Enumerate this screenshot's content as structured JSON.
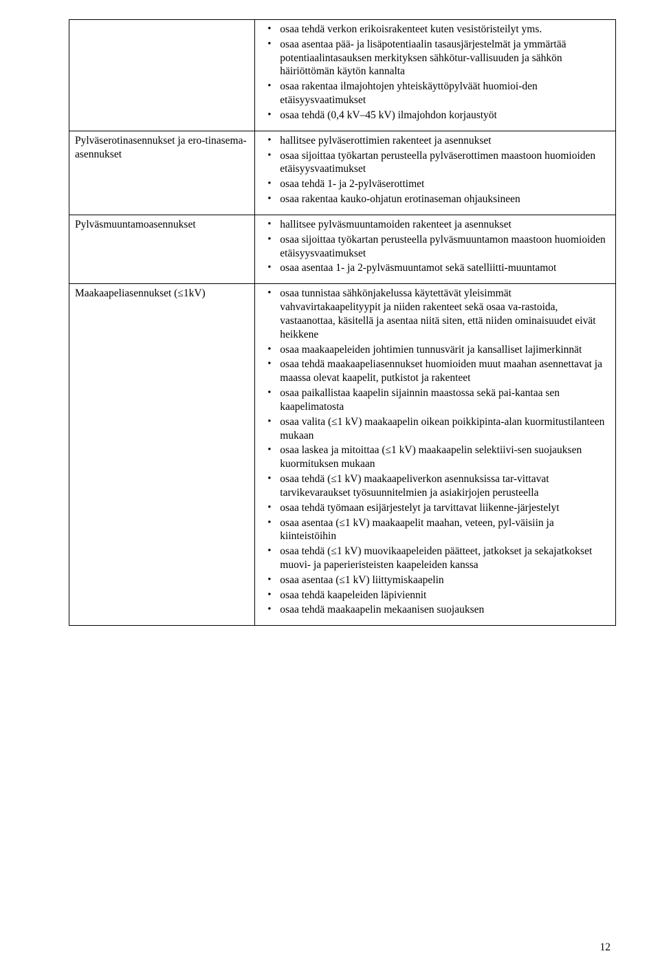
{
  "page_number": "12",
  "rows": [
    {
      "left": "",
      "right_block1": [
        "osaa tehdä verkon erikoisrakenteet kuten vesistöristeilyt yms.",
        "osaa asentaa pää- ja lisäpotentiaalin tasausjärjestelmät ja ymmärtää potentiaalintasauksen merkityksen sähkötur-vallisuuden ja sähkön häiriöttömän käytön kannalta",
        "osaa rakentaa ilmajohtojen yhteiskäyttöpylväät huomioi-den etäisyysvaatimukset",
        "osaa tehdä (0,4 kV–45 kV) ilmajohdon korjaustyöt"
      ],
      "right_block2": []
    },
    {
      "left": "Pylväserotinasennukset ja ero-tinasema-asennukset",
      "right_block1": [
        "hallitsee pylväserottimien rakenteet ja asennukset",
        "osaa sijoittaa työkartan perusteella pylväserottimen maastoon huomioiden etäisyysvaatimukset",
        "osaa tehdä 1- ja 2-pylväserottimet",
        "osaa rakentaa kauko-ohjatun erotinaseman ohjauksineen"
      ],
      "right_block2": []
    },
    {
      "left": "Pylväsmuuntamoasennukset",
      "right_block1": [
        "hallitsee pylväsmuuntamoiden rakenteet ja asennukset",
        "osaa sijoittaa työkartan perusteella pylväsmuuntamon maastoon huomioiden etäisyysvaatimukset",
        "osaa asentaa 1- ja 2-pylväsmuuntamot sekä satelliitti-muuntamot"
      ],
      "right_block2": []
    },
    {
      "left": "Maakaapeliasennukset (≤1kV)",
      "right_block1": [
        "osaa tunnistaa sähkönjakelussa käytettävät yleisimmät vahvavirtakaapelityypit ja niiden rakenteet sekä osaa va-rastoida, vastaanottaa, käsitellä ja asentaa niitä siten, että niiden ominaisuudet eivät heikkene",
        "osaa maakaapeleiden johtimien tunnusvärit ja kansalliset lajimerkinnät",
        "osaa tehdä maakaapeliasennukset huomioiden muut maahan asennettavat ja maassa olevat kaapelit, putkistot ja rakenteet",
        "osaa paikallistaa kaapelin sijainnin maastossa sekä pai-kantaa sen kaapelimatosta",
        "osaa valita (≤1 kV) maakaapelin oikean poikkipinta-alan kuormitustilanteen mukaan",
        "osaa laskea ja mitoittaa (≤1 kV) maakaapelin selektiivi-sen suojauksen kuormituksen mukaan",
        "osaa tehdä (≤1 kV) maakaapeliverkon asennuksissa tar-vittavat tarvikevaraukset työsuunnitelmien ja asiakirjojen perusteella",
        "osaa tehdä työmaan esijärjestelyt ja tarvittavat liikenne-järjestelyt",
        "osaa asentaa (≤1 kV) maakaapelit maahan, veteen, pyl-väisiin ja kiinteistöihin",
        "osaa tehdä (≤1 kV) muovikaapeleiden päätteet, jatkokset ja sekajatkokset muovi- ja paperieristeisten kaapeleiden kanssa",
        "osaa asentaa (≤1 kV) liittymiskaapelin",
        "osaa tehdä kaapeleiden läpiviennit",
        "osaa tehdä maakaapelin mekaanisen suojauksen"
      ],
      "right_block2": []
    }
  ]
}
